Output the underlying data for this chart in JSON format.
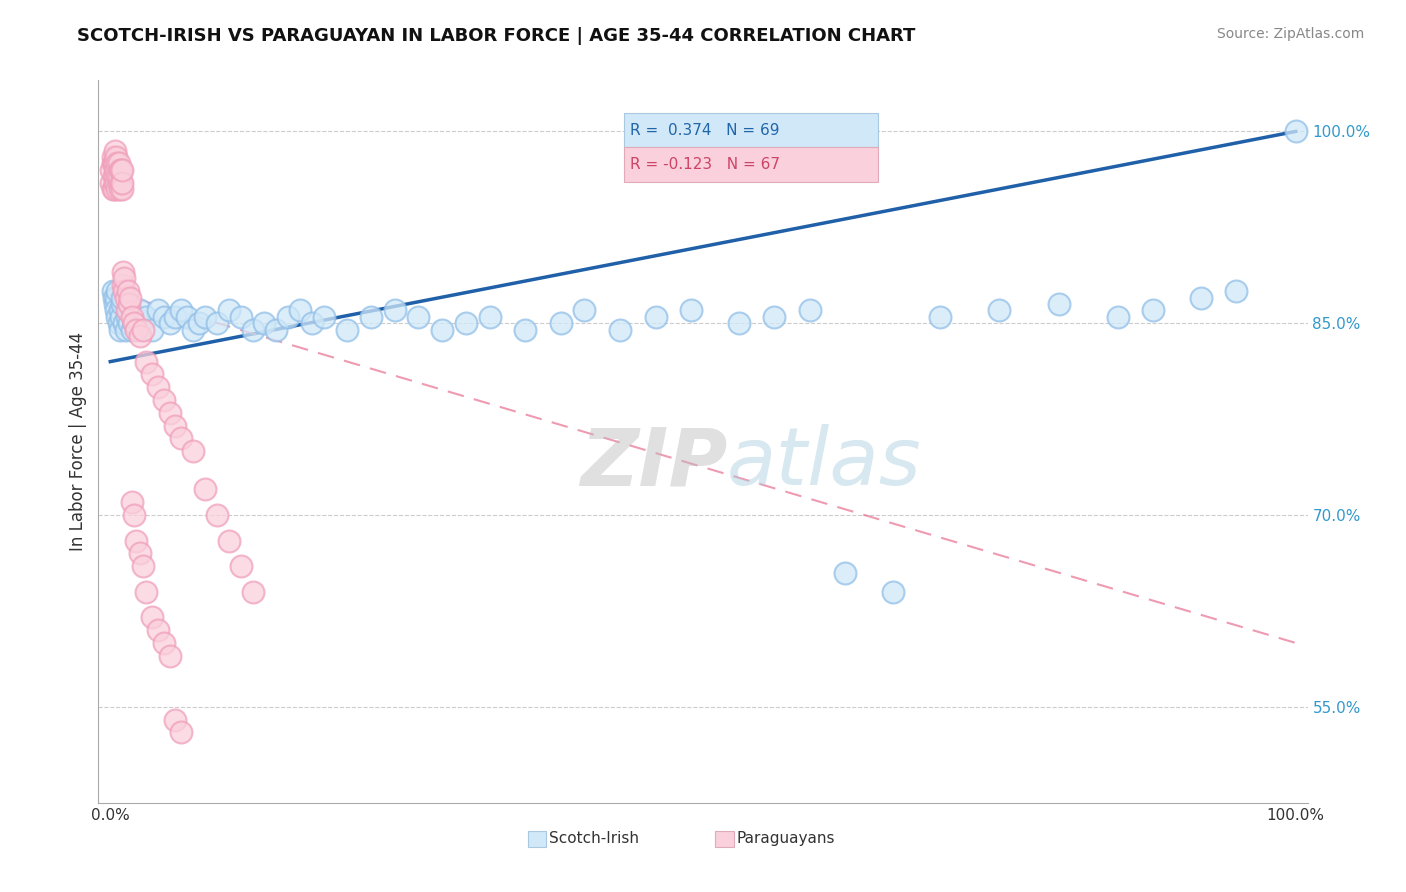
{
  "title": "SCOTCH-IRISH VS PARAGUAYAN IN LABOR FORCE | AGE 35-44 CORRELATION CHART",
  "source": "Source: ZipAtlas.com",
  "ylabel": "In Labor Force | Age 35-44",
  "y_tick_labels": [
    "55.0%",
    "70.0%",
    "85.0%",
    "100.0%"
  ],
  "y_tick_values": [
    0.55,
    0.7,
    0.85,
    1.0
  ],
  "xlim": [
    -0.01,
    1.01
  ],
  "ylim": [
    0.475,
    1.04
  ],
  "legend_blue_label": "Scotch-Irish",
  "legend_pink_label": "Paraguayans",
  "R_blue": 0.374,
  "N_blue": 69,
  "R_pink": -0.123,
  "N_pink": 67,
  "blue_color": "#92BFE8",
  "pink_color": "#F0A0BC",
  "blue_line_color": "#2060A8",
  "pink_line_color": "#E87090",
  "blue_line_x0": 0.0,
  "blue_line_y0": 0.82,
  "blue_line_x1": 1.0,
  "blue_line_y1": 1.0,
  "pink_line_x0": 0.0,
  "pink_line_y0": 0.875,
  "pink_line_x1": 1.0,
  "pink_line_y1": 0.6,
  "blue_scatter_x": [
    0.002,
    0.003,
    0.004,
    0.005,
    0.005,
    0.006,
    0.006,
    0.007,
    0.008,
    0.008,
    0.009,
    0.01,
    0.01,
    0.012,
    0.013,
    0.014,
    0.015,
    0.016,
    0.018,
    0.02,
    0.022,
    0.025,
    0.03,
    0.035,
    0.04,
    0.045,
    0.05,
    0.055,
    0.06,
    0.065,
    0.07,
    0.075,
    0.08,
    0.09,
    0.1,
    0.11,
    0.12,
    0.13,
    0.14,
    0.15,
    0.16,
    0.17,
    0.18,
    0.2,
    0.22,
    0.24,
    0.26,
    0.28,
    0.3,
    0.32,
    0.35,
    0.38,
    0.4,
    0.43,
    0.46,
    0.49,
    0.53,
    0.56,
    0.59,
    0.62,
    0.66,
    0.7,
    0.75,
    0.8,
    0.85,
    0.88,
    0.92,
    0.95,
    1.0
  ],
  "blue_scatter_y": [
    0.875,
    0.87,
    0.865,
    0.87,
    0.86,
    0.855,
    0.875,
    0.85,
    0.845,
    0.86,
    0.855,
    0.865,
    0.87,
    0.85,
    0.845,
    0.855,
    0.86,
    0.85,
    0.845,
    0.85,
    0.855,
    0.86,
    0.855,
    0.845,
    0.86,
    0.855,
    0.85,
    0.855,
    0.86,
    0.855,
    0.845,
    0.85,
    0.855,
    0.85,
    0.86,
    0.855,
    0.845,
    0.85,
    0.845,
    0.855,
    0.86,
    0.85,
    0.855,
    0.845,
    0.855,
    0.86,
    0.855,
    0.845,
    0.85,
    0.855,
    0.845,
    0.85,
    0.86,
    0.845,
    0.855,
    0.86,
    0.85,
    0.855,
    0.86,
    0.655,
    0.64,
    0.855,
    0.86,
    0.865,
    0.855,
    0.86,
    0.87,
    0.875,
    1.0
  ],
  "pink_scatter_x": [
    0.001,
    0.001,
    0.002,
    0.002,
    0.002,
    0.003,
    0.003,
    0.003,
    0.004,
    0.004,
    0.004,
    0.004,
    0.005,
    0.005,
    0.005,
    0.006,
    0.006,
    0.006,
    0.007,
    0.007,
    0.007,
    0.008,
    0.008,
    0.009,
    0.009,
    0.01,
    0.01,
    0.01,
    0.011,
    0.011,
    0.012,
    0.012,
    0.013,
    0.014,
    0.015,
    0.016,
    0.017,
    0.018,
    0.02,
    0.022,
    0.025,
    0.028,
    0.03,
    0.035,
    0.04,
    0.045,
    0.05,
    0.055,
    0.06,
    0.07,
    0.08,
    0.09,
    0.1,
    0.11,
    0.12,
    0.018,
    0.02,
    0.022,
    0.025,
    0.028,
    0.03,
    0.035,
    0.04,
    0.045,
    0.05,
    0.055,
    0.06
  ],
  "pink_scatter_y": [
    0.96,
    0.97,
    0.955,
    0.975,
    0.98,
    0.955,
    0.965,
    0.975,
    0.96,
    0.965,
    0.975,
    0.985,
    0.96,
    0.97,
    0.98,
    0.955,
    0.965,
    0.975,
    0.96,
    0.965,
    0.975,
    0.955,
    0.97,
    0.96,
    0.97,
    0.955,
    0.96,
    0.97,
    0.88,
    0.89,
    0.875,
    0.885,
    0.87,
    0.86,
    0.875,
    0.865,
    0.87,
    0.855,
    0.85,
    0.845,
    0.84,
    0.845,
    0.82,
    0.81,
    0.8,
    0.79,
    0.78,
    0.77,
    0.76,
    0.75,
    0.72,
    0.7,
    0.68,
    0.66,
    0.64,
    0.71,
    0.7,
    0.68,
    0.67,
    0.66,
    0.64,
    0.62,
    0.61,
    0.6,
    0.59,
    0.54,
    0.53
  ]
}
